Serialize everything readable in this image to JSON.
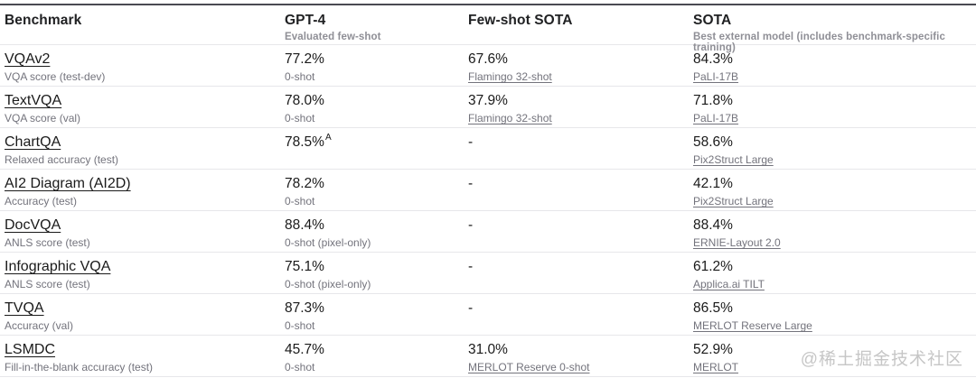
{
  "header": {
    "columns": [
      {
        "label": "Benchmark",
        "sublabel": ""
      },
      {
        "label": "GPT-4",
        "sublabel": "Evaluated few-shot"
      },
      {
        "label": "Few-shot SOTA",
        "sublabel": ""
      },
      {
        "label": "SOTA",
        "sublabel": "Best external model (includes benchmark-specific training)"
      }
    ]
  },
  "rows": [
    {
      "benchmark": "VQAv2",
      "metric": "VQA score (test-dev)",
      "gpt4_value": "77.2%",
      "gpt4_sup": "",
      "gpt4_note": "0-shot",
      "fewshot_value": "67.6%",
      "fewshot_model": "Flamingo 32-shot",
      "sota_value": "84.3%",
      "sota_model": "PaLI-17B"
    },
    {
      "benchmark": "TextVQA",
      "metric": "VQA score (val)",
      "gpt4_value": "78.0%",
      "gpt4_sup": "",
      "gpt4_note": "0-shot",
      "fewshot_value": "37.9%",
      "fewshot_model": "Flamingo 32-shot",
      "sota_value": "71.8%",
      "sota_model": "PaLI-17B"
    },
    {
      "benchmark": "ChartQA",
      "metric": "Relaxed accuracy (test)",
      "gpt4_value": "78.5%",
      "gpt4_sup": "A",
      "gpt4_note": "",
      "fewshot_value": "-",
      "fewshot_model": "",
      "sota_value": "58.6%",
      "sota_model": "Pix2Struct Large"
    },
    {
      "benchmark": "AI2 Diagram (AI2D)",
      "metric": "Accuracy (test)",
      "gpt4_value": "78.2%",
      "gpt4_sup": "",
      "gpt4_note": "0-shot",
      "fewshot_value": "-",
      "fewshot_model": "",
      "sota_value": "42.1%",
      "sota_model": "Pix2Struct Large"
    },
    {
      "benchmark": "DocVQA",
      "metric": "ANLS score (test)",
      "gpt4_value": "88.4%",
      "gpt4_sup": "",
      "gpt4_note": "0-shot (pixel-only)",
      "fewshot_value": "-",
      "fewshot_model": "",
      "sota_value": "88.4%",
      "sota_model": "ERNIE-Layout 2.0"
    },
    {
      "benchmark": "Infographic VQA",
      "metric": "ANLS score (test)",
      "gpt4_value": "75.1%",
      "gpt4_sup": "",
      "gpt4_note": "0-shot (pixel-only)",
      "fewshot_value": "-",
      "fewshot_model": "",
      "sota_value": "61.2%",
      "sota_model": "Applica.ai TILT"
    },
    {
      "benchmark": "TVQA",
      "metric": "Accuracy (val)",
      "gpt4_value": "87.3%",
      "gpt4_sup": "",
      "gpt4_note": "0-shot",
      "fewshot_value": "-",
      "fewshot_model": "",
      "sota_value": "86.5%",
      "sota_model": "MERLOT Reserve Large"
    },
    {
      "benchmark": "LSMDC",
      "metric": "Fill-in-the-blank accuracy (test)",
      "gpt4_value": "45.7%",
      "gpt4_sup": "",
      "gpt4_note": "0-shot",
      "fewshot_value": "31.0%",
      "fewshot_model": "MERLOT Reserve 0-shot",
      "sota_value": "52.9%",
      "sota_model": "MERLOT"
    }
  ],
  "watermark": "@稀土掘金技术社区",
  "colors": {
    "text": "#202123",
    "muted": "#73737c",
    "divider": "#e7e7ea",
    "top_border": "#4a4a52",
    "watermark": "#c6c6c6"
  }
}
